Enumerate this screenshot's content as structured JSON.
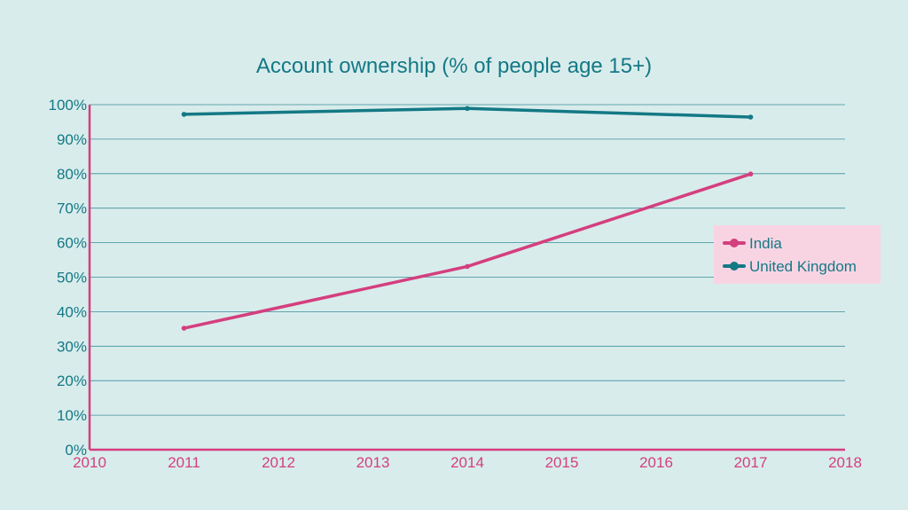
{
  "chart_data": {
    "type": "line",
    "title": "Account ownership (% of people age 15+)",
    "xlabel": "",
    "ylabel": "",
    "x_ticks": [
      "2010",
      "2011",
      "2012",
      "2013",
      "2014",
      "2015",
      "2016",
      "2017",
      "2018"
    ],
    "xlim": [
      2010,
      2018
    ],
    "y_ticks": [
      "0%",
      "10%",
      "20%",
      "30%",
      "40%",
      "50%",
      "60%",
      "70%",
      "80%",
      "90%",
      "100%"
    ],
    "ylim": [
      0,
      100
    ],
    "y_unit": "%",
    "grid": "horizontal",
    "legend_position": "right",
    "series": [
      {
        "name": "India",
        "color": "#d43f7e",
        "x": [
          2011,
          2014,
          2017
        ],
        "y": [
          35.2,
          53.1,
          79.9
        ]
      },
      {
        "name": "United Kingdom",
        "color": "#137985",
        "x": [
          2011,
          2014,
          2017
        ],
        "y": [
          97.2,
          98.9,
          96.4
        ]
      }
    ],
    "colors": {
      "background": "#d9ecec",
      "grid": "#3a8f99",
      "x_axis": "#d43f7e",
      "y_axis": "#d43f7e",
      "legend_background": "#f8d4e3"
    }
  }
}
